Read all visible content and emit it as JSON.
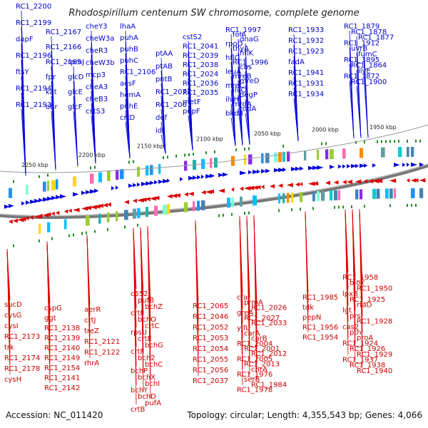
{
  "title": "Rhodospirillum centenum SW chromosome, complete genome",
  "footer": {
    "accession": "Accession: NC_011420",
    "summary": "Topology: circular; Length: 4,355,543 bp; Genes: 4,066"
  },
  "colors": {
    "plus_strand": "#0000dd",
    "minus_strand": "#dd0000",
    "backbone": "#666666",
    "tick_mark": "#228b22"
  },
  "kbp_ticks": [
    "2250 kbp",
    "2200 kbp",
    "2150 kbp",
    "2100 kbp",
    "2050 kbp",
    "2000 kbp",
    "1950 kbp"
  ],
  "plus_labels": [
    "RC1_2200",
    "RC1_2199",
    "dapF",
    "RC1_2196",
    "ftsY",
    "RC1_2194",
    "RC1_2193",
    "RC1_2167",
    "RC1_2166",
    "RC1_2165",
    "fpr",
    "kat",
    "ohr",
    "rpmJ",
    "glcD",
    "glcE",
    "glcF",
    "cheY3",
    "cheW3a",
    "cheR3",
    "cheW3b",
    "mcp3",
    "cheA3",
    "cheB3",
    "cstS3",
    "lhaA",
    "puhA",
    "puhB",
    "puhC",
    "RC1_2106",
    "acsF",
    "hemA",
    "puhE",
    "crtD",
    "ptAA",
    "ptAB",
    "pntB",
    "RC1_2071",
    "RC1_2067",
    "def",
    "idi",
    "cstS2",
    "RC1_2041",
    "RC1_2039",
    "RC1_2038",
    "RC1_2024",
    "RC1_2036",
    "RC1_2035",
    "metF",
    "pepF",
    "RC1_1997",
    "folA",
    "dnaG",
    "rpoD",
    "thyA",
    "hflK",
    "hflC",
    "RC1_1996",
    "cbs",
    "leuA",
    "mreB",
    "mreD",
    "mreC",
    "ilvC",
    "degP",
    "ilvH",
    "mrdA",
    "rodA",
    "bkdR",
    "RC1_1933",
    "RC1_1932",
    "RC1_1923",
    "fadA",
    "RC1_1941",
    "RC1_1931",
    "RC1_1934",
    "RC1_1879",
    "RC1_1878",
    "RC1_1877",
    "RC1_1912",
    "uvrB",
    "fumC",
    "RC1_1895",
    "RC1_1864",
    "ilvE",
    "RC1_1872",
    "RC1_1900"
  ],
  "minus_labels": [
    "sucD",
    "cysG",
    "cysI",
    "RC1_2173",
    "trk",
    "RC1_2174",
    "RC1_2178",
    "cysH",
    "cspG",
    "ggt",
    "RC1_2138",
    "RC1_2139",
    "RC1_2140",
    "RC1_2149",
    "RC1_2154",
    "RC1_2141",
    "RC1_2142",
    "aerR",
    "crtJ",
    "treZ",
    "RC1_2121",
    "RC1_2122",
    "rhrA",
    "c552",
    "pufB",
    "bchZ",
    "crtI",
    "bchO",
    "crtC",
    "rpsU",
    "crtE",
    "bchG",
    "crtF",
    "bch2",
    "bchC",
    "bchP",
    "bchX",
    "bchI",
    "bchY",
    "bchD",
    "pufA",
    "crtB",
    "RC1_2065",
    "RC1_2046",
    "RC1_2052",
    "RC1_2053",
    "RC1_2054",
    "RC1_2055",
    "RC1_2056",
    "RC1_2037",
    "cfa",
    "prmA",
    "RC1_2026",
    "greA",
    "RC1_2027",
    "RC1_2033",
    "yjfL",
    "carA",
    "carB",
    "RC1_2004",
    "RC1_2001",
    "RC1_2012",
    "RC1_2005",
    "RC1_2013",
    "chrA",
    "RC1_1976",
    "serB",
    "RC1_1984",
    "RC1_1978",
    "RC1_1985",
    "tdk",
    "pepN",
    "RC1_1956",
    "RC1_1954",
    "RC1_1958",
    "bioY",
    "RC1_1950",
    "lpxB",
    "RC1_1925",
    "rfaD",
    "lgt",
    "prs",
    "RC1_1928",
    "cas2",
    "pth",
    "proA",
    "RC1_1924",
    "RC1_1926",
    "RC1_1929",
    "RC1_1937",
    "RC1_1938",
    "RC1_1940"
  ]
}
